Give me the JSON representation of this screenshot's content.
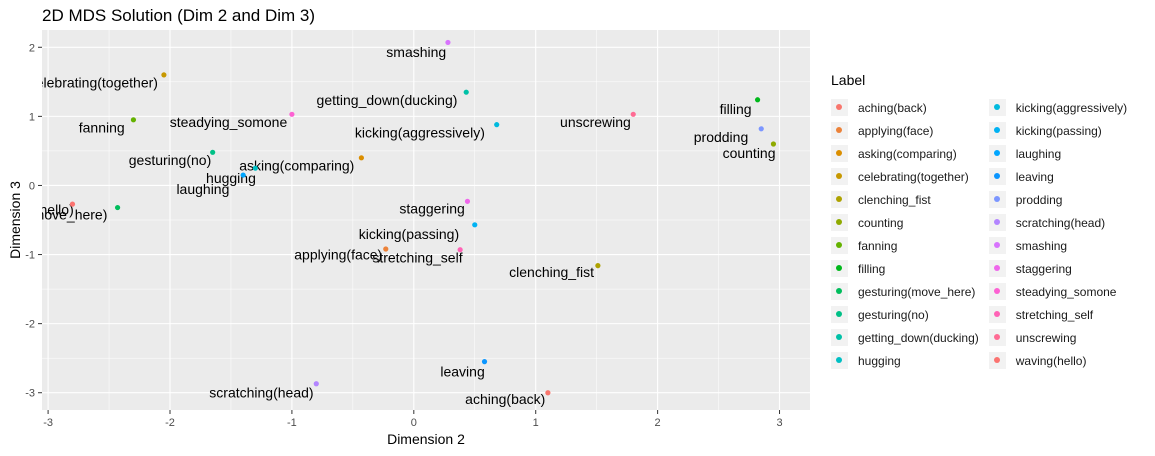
{
  "chart_data": {
    "type": "scatter",
    "title": "2D MDS Solution (Dim 2 and Dim 3)",
    "xlabel": "Dimension 2",
    "ylabel": "Dimension 3",
    "xlim": [
      -3.05,
      3.25
    ],
    "ylim": [
      -3.25,
      2.25
    ],
    "xticks": [
      -3,
      -2,
      -1,
      0,
      1,
      2,
      3
    ],
    "yticks": [
      -3,
      -2,
      -1,
      0,
      1,
      2
    ],
    "grid": true,
    "legend_title": "Label",
    "legend_position": "right",
    "points": [
      {
        "label": "aching(back)",
        "x": 1.1,
        "y": -3.0,
        "color": "#F8766D"
      },
      {
        "label": "applying(face)",
        "x": -0.23,
        "y": -0.92,
        "color": "#EC8239"
      },
      {
        "label": "asking(comparing)",
        "x": -0.43,
        "y": 0.4,
        "color": "#DB8E00"
      },
      {
        "label": "celebrating(together)",
        "x": -2.05,
        "y": 1.6,
        "color": "#C79800"
      },
      {
        "label": "clenching_fist",
        "x": 1.51,
        "y": -1.16,
        "color": "#AEA200"
      },
      {
        "label": "counting",
        "x": 2.95,
        "y": 0.6,
        "color": "#8FAA00"
      },
      {
        "label": "fanning",
        "x": -2.3,
        "y": 0.95,
        "color": "#64B200"
      },
      {
        "label": "filling",
        "x": 2.82,
        "y": 1.24,
        "color": "#00B81B"
      },
      {
        "label": "gesturing(move_here)",
        "x": -2.43,
        "y": -0.32,
        "color": "#00BD5C"
      },
      {
        "label": "gesturing(no)",
        "x": -1.65,
        "y": 0.48,
        "color": "#00C086"
      },
      {
        "label": "getting_down(ducking)",
        "x": 0.43,
        "y": 1.35,
        "color": "#00C1A7"
      },
      {
        "label": "hugging",
        "x": -1.3,
        "y": 0.25,
        "color": "#00BFC4"
      },
      {
        "label": "kicking(aggressively)",
        "x": 0.68,
        "y": 0.88,
        "color": "#00BADE"
      },
      {
        "label": "kicking(passing)",
        "x": 0.5,
        "y": -0.57,
        "color": "#00B2F3"
      },
      {
        "label": "laughing",
        "x": -1.4,
        "y": 0.15,
        "color": "#00A6FF"
      },
      {
        "label": "leaving",
        "x": 0.58,
        "y": -2.55,
        "color": "#0B96FF"
      },
      {
        "label": "prodding",
        "x": 2.85,
        "y": 0.82,
        "color": "#7C96FF"
      },
      {
        "label": "scratching(head)",
        "x": -0.8,
        "y": -2.87,
        "color": "#B385FF"
      },
      {
        "label": "smashing",
        "x": 0.28,
        "y": 2.07,
        "color": "#D874FD"
      },
      {
        "label": "staggering",
        "x": 0.44,
        "y": -0.23,
        "color": "#EF67EB"
      },
      {
        "label": "steadying_somone",
        "x": -1.0,
        "y": 1.03,
        "color": "#FD61D3"
      },
      {
        "label": "stretching_self",
        "x": 0.38,
        "y": -0.93,
        "color": "#FF63B6"
      },
      {
        "label": "unscrewing",
        "x": 1.8,
        "y": 1.03,
        "color": "#FF6B94"
      },
      {
        "label": "waving(hello)",
        "x": -2.8,
        "y": -0.27,
        "color": "#FB7370"
      }
    ],
    "point_labels": [
      {
        "text": "aching(back)",
        "x": 0.75,
        "y": -3.09
      },
      {
        "text": "applying(face)",
        "x": -0.62,
        "y": -1.0
      },
      {
        "text": "asking(comparing)",
        "x": -0.96,
        "y": 0.29
      },
      {
        "text": "elebrating(together)",
        "x": -2.6,
        "y": 1.49
      },
      {
        "text": "clenching_fist",
        "x": 1.13,
        "y": -1.25
      },
      {
        "text": "counting",
        "x": 2.75,
        "y": 0.47
      },
      {
        "text": "fanning",
        "x": -2.56,
        "y": 0.84
      },
      {
        "text": "filling",
        "x": 2.64,
        "y": 1.11
      },
      {
        "text": "move_here)",
        "x": -2.82,
        "y": -0.42
      },
      {
        "text": "gesturing(no)",
        "x": -2.0,
        "y": 0.37
      },
      {
        "text": "getting_down(ducking)",
        "x": -0.22,
        "y": 1.24
      },
      {
        "text": "hugging",
        "x": -1.5,
        "y": 0.11
      },
      {
        "text": "kicking(aggressively)",
        "x": 0.05,
        "y": 0.77
      },
      {
        "text": "kicking(passing)",
        "x": -0.04,
        "y": -0.7
      },
      {
        "text": "laughing",
        "x": -1.73,
        "y": -0.05
      },
      {
        "text": "leaving",
        "x": 0.4,
        "y": -2.69
      },
      {
        "text": "prodding",
        "x": 2.52,
        "y": 0.7
      },
      {
        "text": "scratching(head)",
        "x": -1.25,
        "y": -3.0
      },
      {
        "text": "smashing",
        "x": 0.02,
        "y": 1.93
      },
      {
        "text": "staggering",
        "x": 0.15,
        "y": -0.33
      },
      {
        "text": "steadying_somone",
        "x": -1.52,
        "y": 0.92
      },
      {
        "text": "stretching_self",
        "x": 0.03,
        "y": -1.04
      },
      {
        "text": "unscrewing",
        "x": 1.49,
        "y": 0.92
      },
      {
        "text": "hello)",
        "x": -2.93,
        "y": -0.35
      }
    ]
  }
}
